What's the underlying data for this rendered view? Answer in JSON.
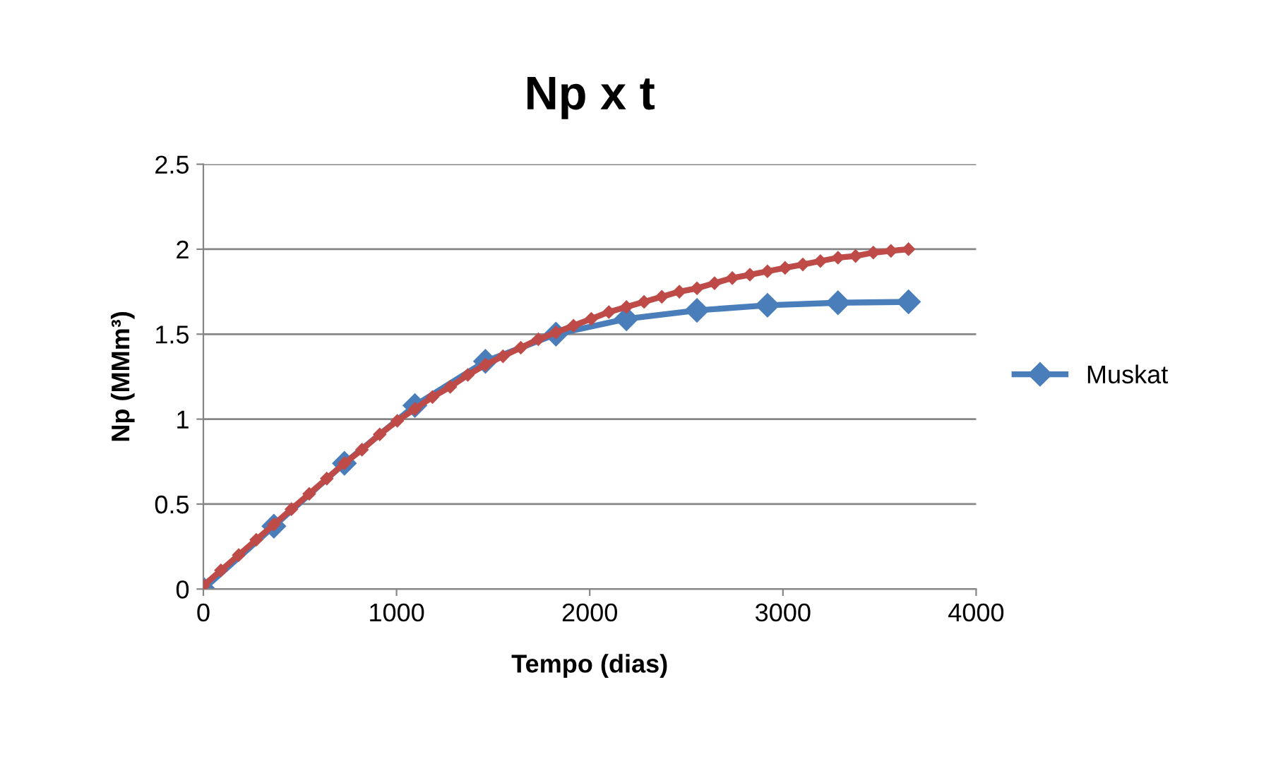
{
  "chart_data": {
    "type": "line",
    "title": "Np x t",
    "xlabel": "Tempo (dias)",
    "ylabel": "Np (MMm³)",
    "xlim": [
      0,
      4000
    ],
    "xticks": [
      0,
      1000,
      2000,
      3000,
      4000
    ],
    "ylim": [
      0,
      2.5
    ],
    "yticks": [
      0,
      0.5,
      1,
      1.5,
      2,
      2.5
    ],
    "grid": "y",
    "legend": "right",
    "marker": "diamond",
    "line_style": "solid",
    "series": [
      {
        "name": "Muskat",
        "color": "#4a7ebb",
        "x": [
          0,
          365,
          730,
          1095,
          1460,
          1825,
          2190,
          2555,
          2920,
          3285,
          3650
        ],
        "values": [
          0,
          0.37,
          0.74,
          1.08,
          1.34,
          1.5,
          1.59,
          1.64,
          1.67,
          1.685,
          1.69
        ]
      },
      {
        "color": "#be4b48",
        "x": [
          0,
          91,
          183,
          274,
          365,
          456,
          548,
          639,
          730,
          821,
          913,
          1004,
          1095,
          1186,
          1278,
          1369,
          1460,
          1551,
          1643,
          1734,
          1825,
          1916,
          2008,
          2099,
          2190,
          2281,
          2373,
          2464,
          2555,
          2646,
          2738,
          2829,
          2920,
          3011,
          3103,
          3194,
          3285,
          3376,
          3468,
          3559,
          3650
        ],
        "values": [
          0.02,
          0.11,
          0.2,
          0.29,
          0.38,
          0.47,
          0.56,
          0.65,
          0.74,
          0.82,
          0.91,
          0.99,
          1.06,
          1.13,
          1.19,
          1.26,
          1.32,
          1.37,
          1.42,
          1.47,
          1.51,
          1.55,
          1.59,
          1.63,
          1.66,
          1.69,
          1.72,
          1.75,
          1.77,
          1.8,
          1.83,
          1.85,
          1.87,
          1.89,
          1.91,
          1.93,
          1.95,
          1.96,
          1.98,
          1.99,
          2.0
        ]
      }
    ]
  }
}
